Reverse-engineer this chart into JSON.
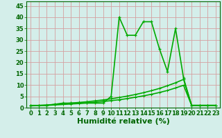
{
  "title": "",
  "xlabel": "Humidité relative (%)",
  "ylabel": "",
  "bg_color": "#d4eeea",
  "grid_color": "#d4a0a0",
  "line_color": "#00aa00",
  "xlim": [
    -0.5,
    23.5
  ],
  "ylim": [
    0,
    47
  ],
  "yticks": [
    0,
    5,
    10,
    15,
    20,
    25,
    30,
    35,
    40,
    45
  ],
  "xticks": [
    0,
    1,
    2,
    3,
    4,
    5,
    6,
    7,
    8,
    9,
    10,
    11,
    12,
    13,
    14,
    15,
    16,
    17,
    18,
    19,
    20,
    21,
    22,
    23
  ],
  "main_x": [
    0,
    1,
    2,
    3,
    4,
    5,
    6,
    7,
    8,
    9,
    10,
    11,
    12,
    13,
    14,
    15,
    16,
    17,
    18,
    19,
    20,
    21,
    22,
    23
  ],
  "main_y": [
    1,
    1,
    1,
    1.5,
    2,
    2,
    2,
    2,
    2,
    2,
    5,
    40,
    32,
    32,
    38,
    38,
    26,
    16,
    35,
    13,
    1,
    1,
    1,
    1
  ],
  "trend1_x": [
    0,
    1,
    2,
    3,
    4,
    5,
    6,
    7,
    8,
    9,
    10,
    11,
    12,
    13,
    14,
    15,
    16,
    17,
    18,
    19,
    20,
    21,
    22,
    23
  ],
  "trend1_y": [
    0.8,
    1.0,
    1.2,
    1.4,
    1.7,
    2.0,
    2.3,
    2.6,
    3.0,
    3.4,
    3.9,
    4.5,
    5.1,
    5.8,
    6.6,
    7.5,
    8.5,
    9.7,
    11.0,
    12.5,
    1,
    1,
    1,
    1
  ],
  "trend2_x": [
    0,
    1,
    2,
    3,
    4,
    5,
    6,
    7,
    8,
    9,
    10,
    11,
    12,
    13,
    14,
    15,
    16,
    17,
    18,
    19,
    20,
    21,
    22,
    23
  ],
  "trend2_y": [
    0.8,
    0.9,
    1.0,
    1.2,
    1.4,
    1.6,
    1.8,
    2.1,
    2.4,
    2.7,
    3.1,
    3.5,
    4.0,
    4.6,
    5.2,
    5.9,
    6.7,
    7.6,
    8.7,
    9.9,
    1,
    1,
    1,
    1
  ],
  "marker_size": 2.5,
  "line_width": 1.2,
  "xlabel_fontsize": 8,
  "tick_fontsize": 6,
  "tick_color": "#006600"
}
